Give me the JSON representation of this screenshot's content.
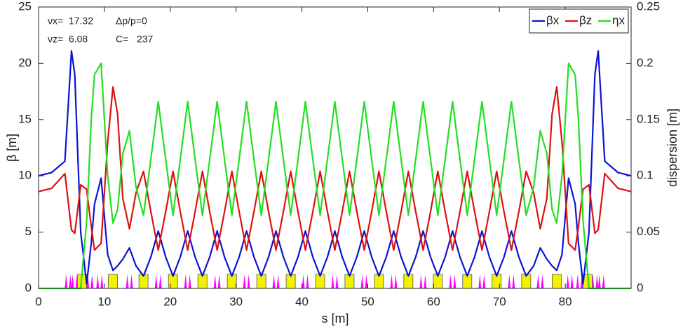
{
  "chart_data": {
    "type": "line",
    "annotations": [
      "νx=  17.32",
      "Δp/p=0",
      "νz=  6.08",
      "C=   237"
    ],
    "xlabel": "s [m]",
    "ylabel": "β [m]",
    "y2label": "dispersion [m]",
    "xlim": [
      0,
      90
    ],
    "xticks": [
      0,
      10,
      20,
      30,
      40,
      50,
      60,
      70,
      80
    ],
    "ylim": [
      0,
      25
    ],
    "yticks": [
      0,
      5,
      10,
      15,
      20,
      25
    ],
    "y2lim": [
      0,
      0.25
    ],
    "y2ticks": [
      0,
      0.05,
      0.1,
      0.15,
      0.2,
      0.25
    ],
    "grid": false,
    "legend": "upper right",
    "x": [
      0,
      2,
      4,
      5,
      5.5,
      6.4,
      7.3,
      8,
      8.5,
      9.5,
      10.5,
      11.3,
      12,
      12.8,
      13.8,
      14.8,
      15.94,
      17.06,
      18.18,
      19.3,
      20.42,
      21.53,
      22.65,
      23.77,
      24.89,
      26.0,
      27.12,
      28.24,
      29.36,
      30.47,
      31.59,
      32.71,
      33.83,
      34.94,
      36.06,
      37.18,
      38.3,
      39.41,
      40.53,
      41.65,
      42.77,
      43.88,
      45.0,
      46.12,
      47.23,
      48.35,
      49.47,
      50.59,
      51.7,
      52.82,
      53.94,
      55.06,
      56.17,
      57.29,
      58.41,
      59.53,
      60.64,
      61.76,
      62.88,
      64.0,
      65.11,
      66.23,
      67.35,
      68.47,
      69.58,
      70.7,
      71.82,
      72.94,
      74.06,
      75.2,
      76.2,
      77.2,
      78,
      78.7,
      79.5,
      80.5,
      81.5,
      82,
      82.7,
      83.6,
      84.5,
      85,
      86,
      88,
      90
    ],
    "series": [
      {
        "name": "βx",
        "color": "#0a14d2",
        "values": [
          10.0,
          10.3,
          11.3,
          21.1,
          19.0,
          5.0,
          0.4,
          4.0,
          7.5,
          9.8,
          3.0,
          1.6,
          2.0,
          2.6,
          3.6,
          2.0,
          1.1,
          2.8,
          5.1,
          2.8,
          1.1,
          2.8,
          5.1,
          2.8,
          1.1,
          2.8,
          5.1,
          2.8,
          1.1,
          2.8,
          5.1,
          2.8,
          1.1,
          2.8,
          5.1,
          2.8,
          1.1,
          2.8,
          5.1,
          2.8,
          1.1,
          2.8,
          5.1,
          2.8,
          1.1,
          2.8,
          5.1,
          2.8,
          1.1,
          2.8,
          5.1,
          2.8,
          1.1,
          2.8,
          5.1,
          2.8,
          1.1,
          2.8,
          5.1,
          2.8,
          1.1,
          2.8,
          5.1,
          2.8,
          1.1,
          2.8,
          5.1,
          2.8,
          1.1,
          2.0,
          3.6,
          2.6,
          2.0,
          1.6,
          3.0,
          9.8,
          7.5,
          4.0,
          0.4,
          5.0,
          19.0,
          21.1,
          11.3,
          10.3,
          10.0
        ]
      },
      {
        "name": "βz",
        "color": "#e01010",
        "values": [
          8.6,
          8.9,
          10.2,
          5.2,
          4.9,
          9.2,
          8.8,
          5.5,
          3.4,
          4.0,
          13.0,
          17.9,
          15.5,
          8.0,
          5.3,
          8.5,
          10.4,
          6.8,
          3.4,
          6.8,
          10.4,
          6.8,
          3.4,
          6.8,
          10.4,
          6.8,
          3.4,
          6.8,
          10.4,
          6.8,
          3.4,
          6.8,
          10.4,
          6.8,
          3.4,
          6.8,
          10.4,
          6.8,
          3.4,
          6.8,
          10.4,
          6.8,
          3.4,
          6.8,
          10.4,
          6.8,
          3.4,
          6.8,
          10.4,
          6.8,
          3.4,
          6.8,
          10.4,
          6.8,
          3.4,
          6.8,
          10.4,
          6.8,
          3.4,
          6.8,
          10.4,
          6.8,
          3.4,
          6.8,
          10.4,
          6.8,
          3.4,
          6.8,
          10.4,
          8.5,
          5.3,
          8.0,
          15.5,
          17.9,
          13.0,
          4.0,
          3.4,
          5.5,
          8.8,
          9.2,
          4.9,
          5.2,
          10.2,
          8.9,
          8.6
        ]
      },
      {
        "name": "ηx",
        "color": "#22e022",
        "axis": "y2",
        "values": [
          0,
          0,
          0,
          0,
          0,
          0,
          0.06,
          0.15,
          0.19,
          0.2,
          0.1,
          0.058,
          0.07,
          0.12,
          0.14,
          0.09,
          0.065,
          0.115,
          0.166,
          0.115,
          0.065,
          0.115,
          0.166,
          0.115,
          0.065,
          0.115,
          0.166,
          0.115,
          0.065,
          0.115,
          0.166,
          0.115,
          0.065,
          0.115,
          0.166,
          0.115,
          0.065,
          0.115,
          0.166,
          0.115,
          0.065,
          0.115,
          0.166,
          0.115,
          0.065,
          0.115,
          0.166,
          0.115,
          0.065,
          0.115,
          0.166,
          0.115,
          0.065,
          0.115,
          0.166,
          0.115,
          0.065,
          0.115,
          0.166,
          0.115,
          0.065,
          0.115,
          0.166,
          0.115,
          0.065,
          0.115,
          0.166,
          0.115,
          0.065,
          0.09,
          0.14,
          0.12,
          0.07,
          0.058,
          0.1,
          0.2,
          0.19,
          0.15,
          0.06,
          0,
          0,
          0,
          0,
          0,
          0
        ]
      }
    ],
    "magnets": {
      "dipole_color": "#f2f200",
      "quadrupole_color": "#ff00ff",
      "dipoles": [
        6.6,
        11.3,
        15.94,
        20.42,
        24.89,
        29.36,
        33.83,
        38.3,
        42.77,
        47.23,
        51.7,
        56.17,
        60.64,
        65.11,
        69.58,
        74.06,
        78.7,
        83.4
      ],
      "quadrupoles": [
        4.5,
        5.5,
        7.8,
        9.3,
        13.8,
        18.18,
        22.65,
        27.12,
        31.59,
        36.06,
        40.53,
        45.0,
        49.47,
        53.94,
        58.41,
        62.88,
        67.35,
        71.82,
        76.2,
        80.7,
        82.2,
        84.5,
        85.5
      ]
    }
  }
}
